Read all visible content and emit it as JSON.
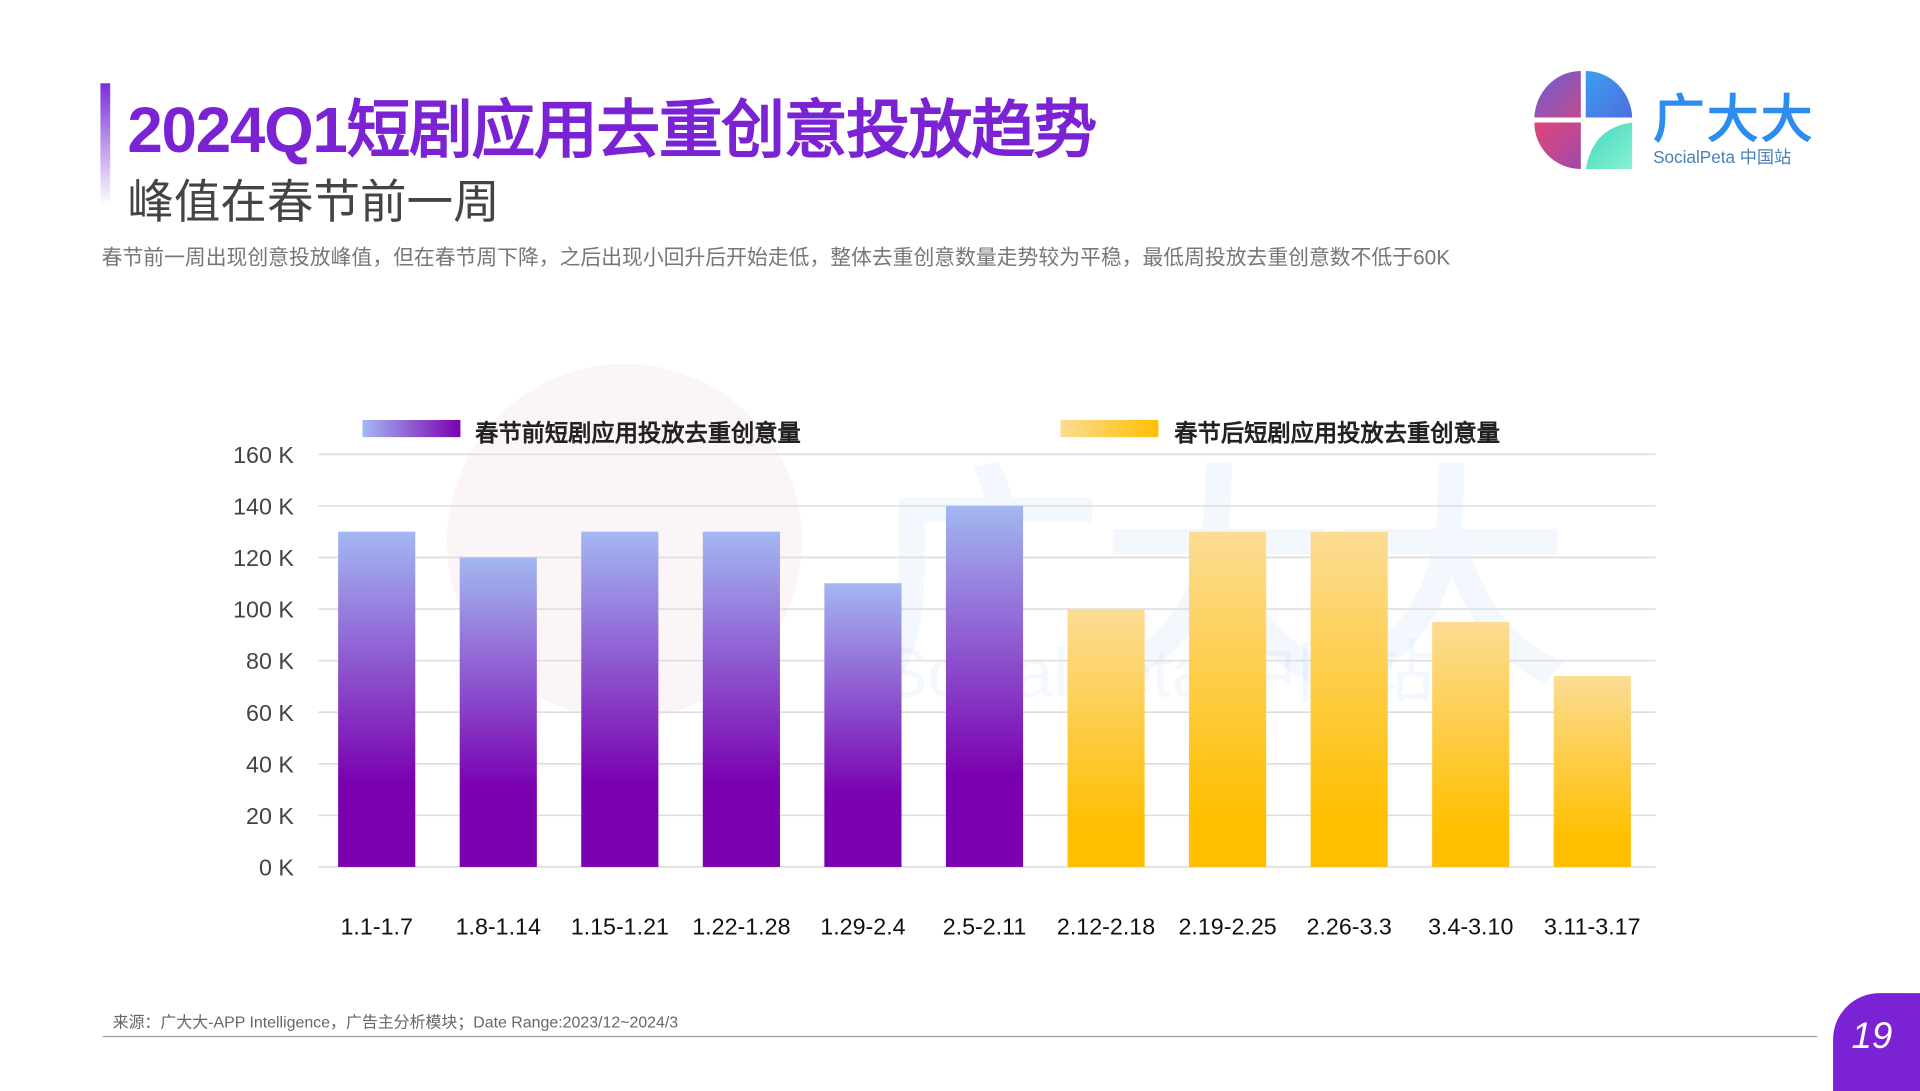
{
  "header": {
    "title": "2024Q1短剧应用去重创意投放趋势",
    "subtitle": "峰值在春节前一周",
    "description": "春节前一周出现创意投放峰值，但在春节周下降，之后出现小回升后开始走低，整体去重创意数量走势较为平稳，最低周投放去重创意数不低于60K"
  },
  "brand": {
    "name": "广大大",
    "sub": "SocialPeta 中国站"
  },
  "watermark": {
    "main": "广大大",
    "sub": "SocialPeta 中国站"
  },
  "footer": {
    "source": "来源：广大大-APP Intelligence，广告主分析模块；Date Range:2023/12~2024/3",
    "page": "19"
  },
  "chart_data": {
    "type": "bar",
    "categories": [
      "1.1-1.7",
      "1.8-1.14",
      "1.15-1.21",
      "1.22-1.28",
      "1.29-2.4",
      "2.5-2.11",
      "2.12-2.18",
      "2.19-2.25",
      "2.26-3.3",
      "3.4-3.10",
      "3.11-3.17"
    ],
    "series": [
      {
        "name": "春节前短剧应用投放去重创意量",
        "values": [
          130,
          120,
          130,
          130,
          110,
          140,
          null,
          null,
          null,
          null,
          null
        ],
        "color": "#7a00b0",
        "color_top": "#a3b8f2"
      },
      {
        "name": "春节后短剧应用投放去重创意量",
        "values": [
          null,
          null,
          null,
          null,
          null,
          null,
          100,
          130,
          130,
          95,
          74
        ],
        "color": "#ffbf00",
        "color_top": "#fcdc94"
      }
    ],
    "ylim": [
      0,
      160
    ],
    "yticks": [
      "0 K",
      "20 K",
      "40 K",
      "60 K",
      "80 K",
      "100 K",
      "120 K",
      "140 K",
      "160 K"
    ],
    "unit": "K",
    "grid": true,
    "legend": "top"
  }
}
